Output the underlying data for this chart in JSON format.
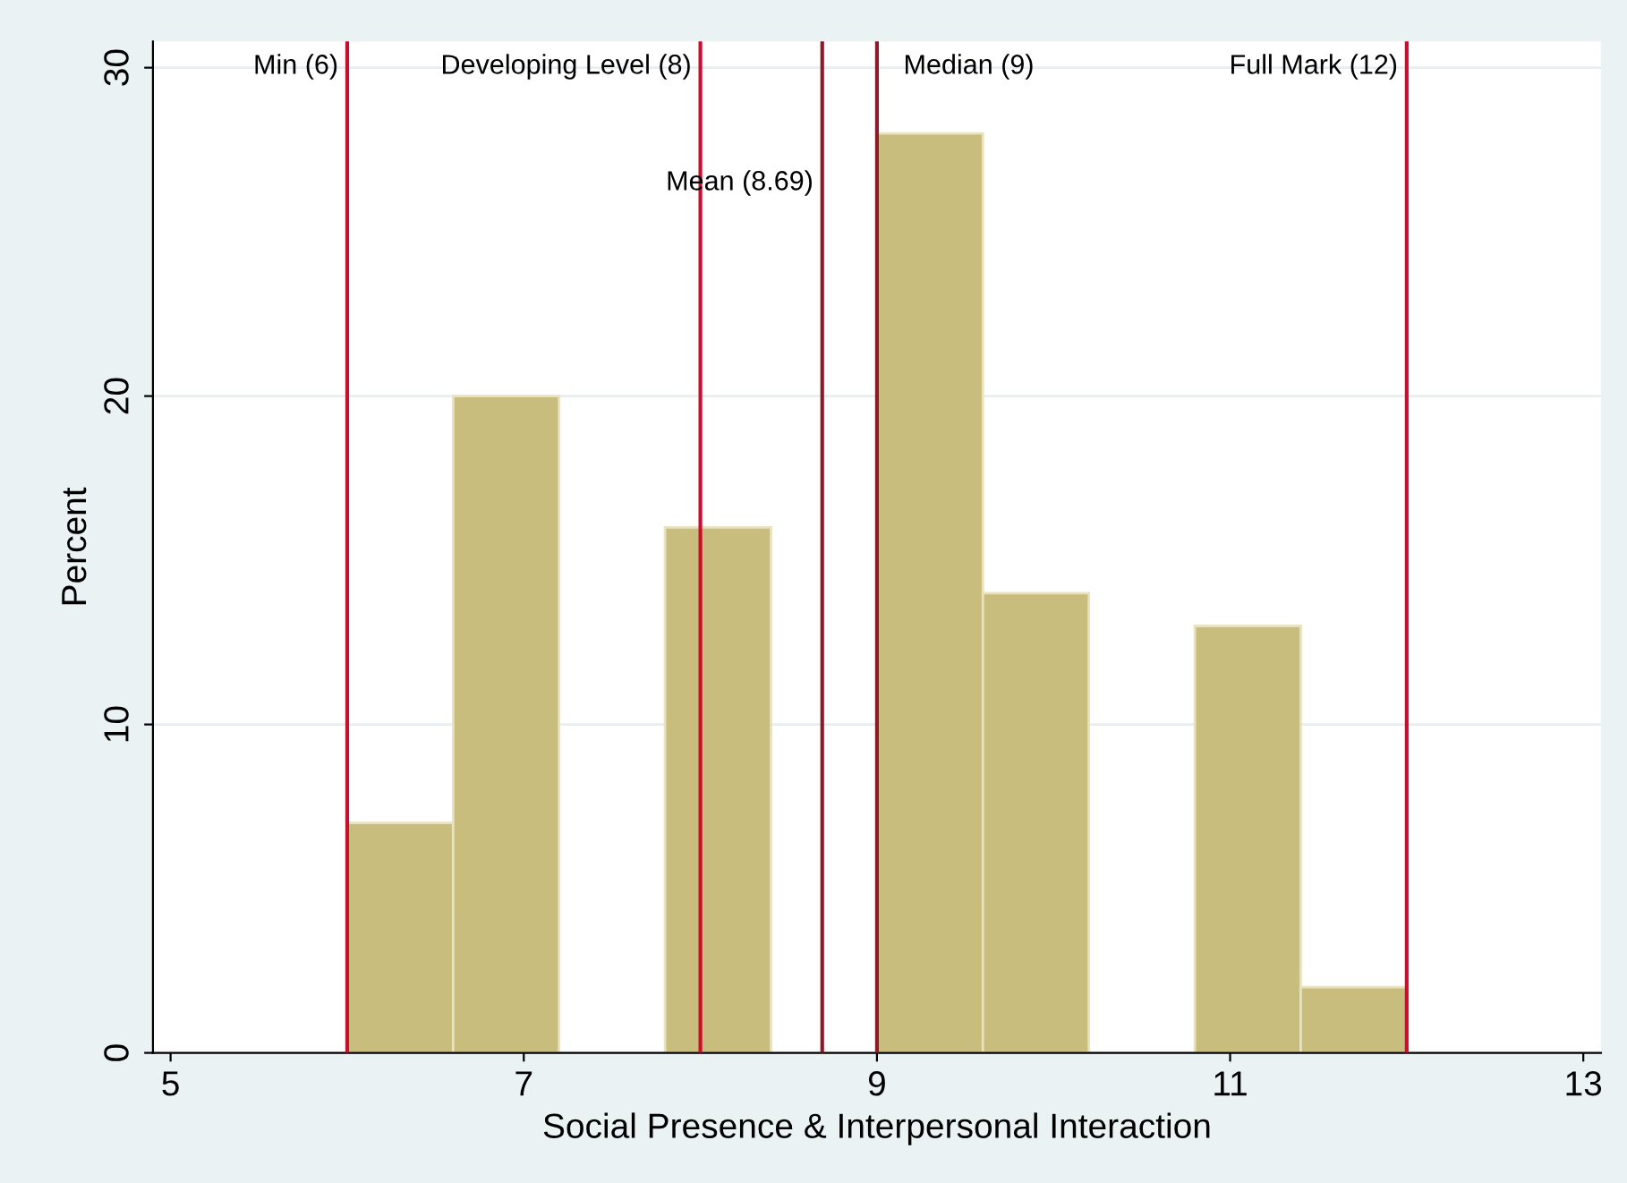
{
  "chart_data": {
    "type": "histogram",
    "xlabel": "Social Presence & Interpersonal Interaction",
    "ylabel": "Percent",
    "bins": [
      6,
      6.6,
      7.2,
      7.8,
      8.4,
      9.0,
      9.6,
      10.2,
      10.8,
      11.4,
      12
    ],
    "values": [
      7,
      20,
      0,
      16,
      0,
      28,
      14,
      0,
      13,
      2
    ],
    "color": "#c9bd7d",
    "xlim": [
      4.9,
      13.1
    ],
    "xticks": [
      5,
      7,
      9,
      11,
      13
    ],
    "ylim": [
      0,
      30.8
    ],
    "yticks": [
      0,
      10,
      20,
      30
    ],
    "grid": "y",
    "ref_lines": [
      {
        "axis": "x",
        "value": 6,
        "label": "Min (6)",
        "color": "#c8102e"
      },
      {
        "axis": "x",
        "value": 8,
        "label": "Developing Level (8)",
        "color": "#c8102e"
      },
      {
        "axis": "x",
        "value": 8.69,
        "label": "Mean (8.69)",
        "color": "#8b1a2b"
      },
      {
        "axis": "x",
        "value": 9,
        "label": "Median (9)",
        "color": "#8b1a2b"
      },
      {
        "axis": "x",
        "value": 12,
        "label": "Full Mark (12)",
        "color": "#c8102e"
      }
    ]
  }
}
